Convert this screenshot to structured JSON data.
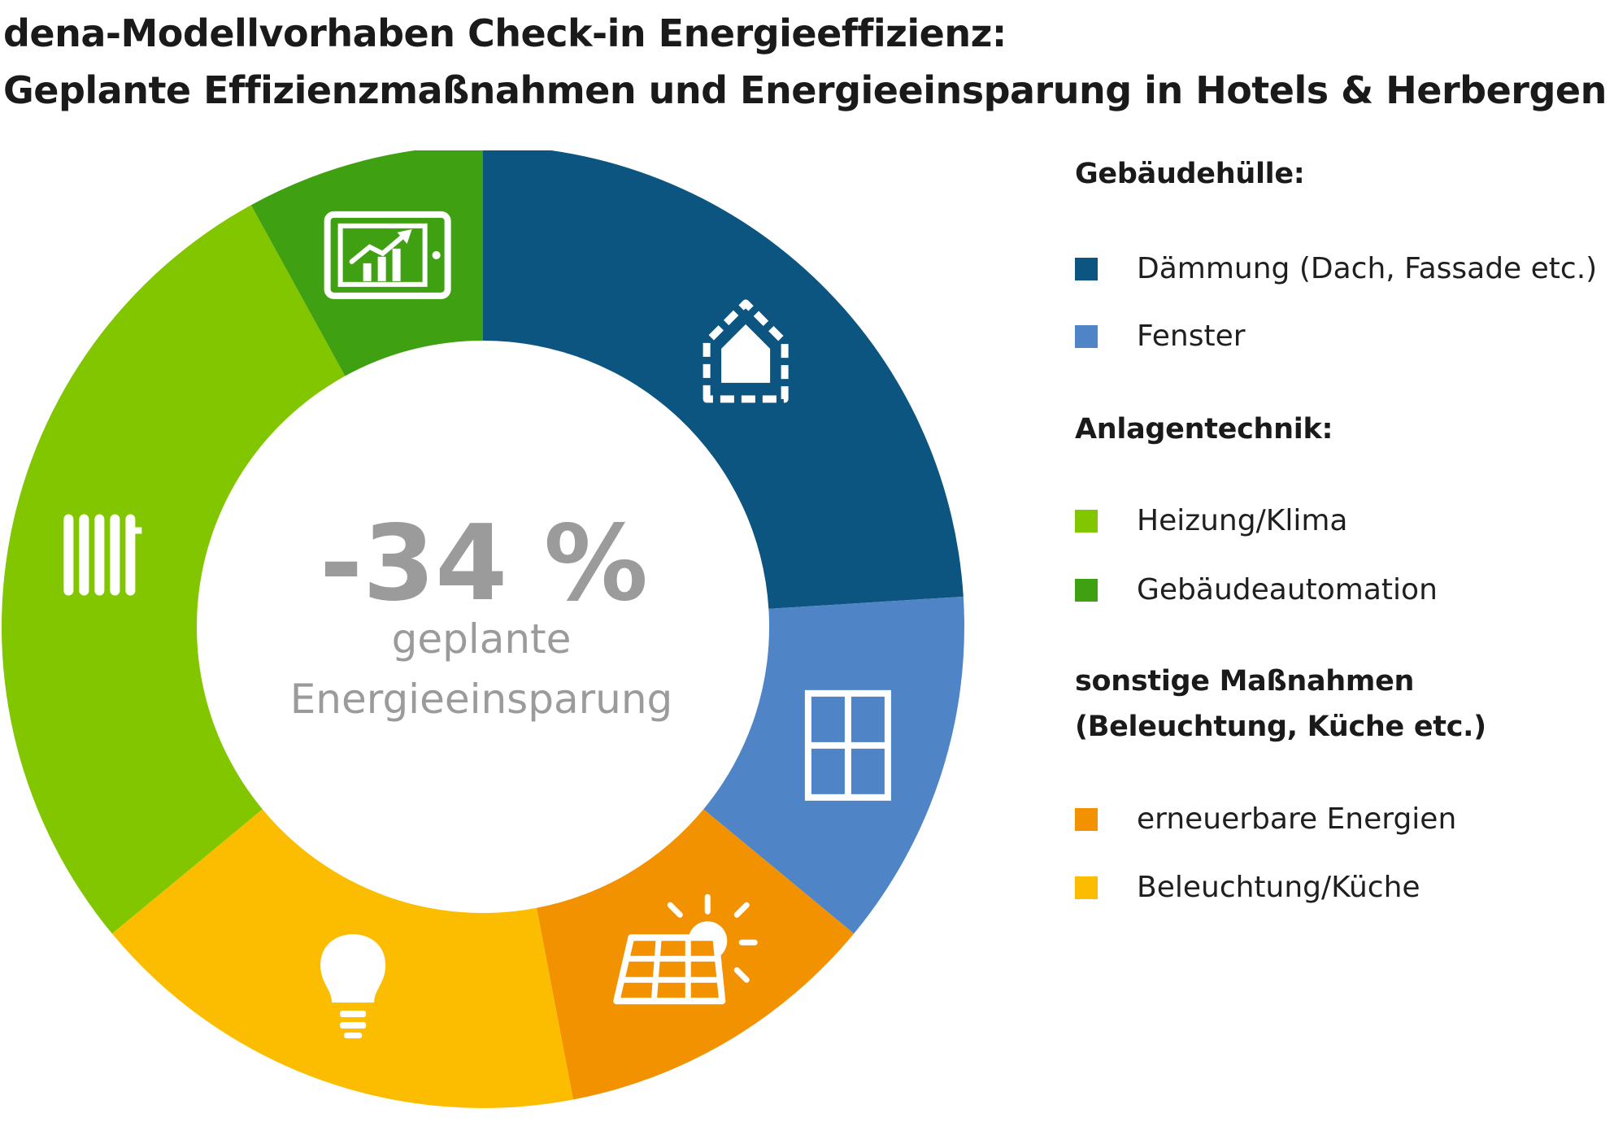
{
  "title_line1": "dena-Modellvorhaben Check-in Energieeffizienz:",
  "title_line2": "Geplante Effizienzmaßnahmen und Energieeinsparung in Hotels & Herbergen",
  "center": {
    "value": "-34 %",
    "label_line1": "geplante",
    "label_line2": "Energieeinsparung"
  },
  "legend": {
    "group1": "Gebäudehülle:",
    "group2": "Anlagentechnik:",
    "group3_line1": "sonstige Maßnahmen",
    "group3_line2": "(Beleuchtung, Küche etc.)"
  },
  "chart_data": {
    "type": "pie",
    "donut": true,
    "title": "",
    "slices": [
      {
        "label": "Dämmung (Dach, Fassade etc.)",
        "value": 24,
        "color": "#0b5580",
        "icon": "house-outline-icon"
      },
      {
        "label": "Fenster",
        "value": 12,
        "color": "#4f85c6",
        "icon": "window-icon"
      },
      {
        "label": "erneuerbare Energien",
        "value": 11,
        "color": "#f39200",
        "icon": "solar-panel-icon"
      },
      {
        "label": "Beleuchtung/Küche",
        "value": 17,
        "color": "#fcbd00",
        "icon": "light-bulb-icon"
      },
      {
        "label": "Heizung/Klima",
        "value": 28,
        "color": "#82c600",
        "icon": "radiator-icon"
      },
      {
        "label": "Gebäudeautomation",
        "value": 8,
        "color": "#3fa012",
        "icon": "tablet-chart-icon"
      }
    ],
    "center_text_color": "#9b9b9b"
  }
}
